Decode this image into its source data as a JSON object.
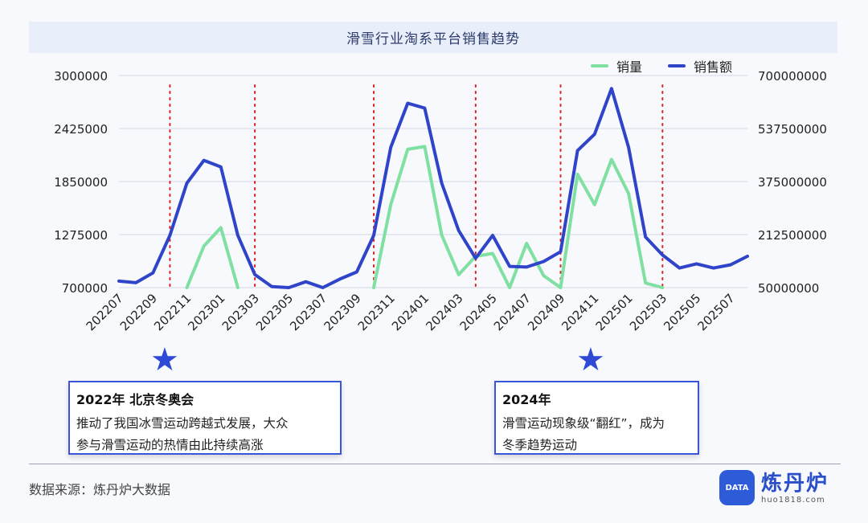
{
  "title": "滑雪行业淘系平台销售趋势",
  "legend": [
    {
      "name": "销量",
      "color": "#7fe0a2"
    },
    {
      "name": "销售额",
      "color": "#2f44c8"
    }
  ],
  "chart_data": {
    "type": "line",
    "title": "滑雪行业淘系平台销售趋势",
    "x": [
      "202207",
      "202208",
      "202209",
      "202210",
      "202211",
      "202212",
      "202301",
      "202302",
      "202303",
      "202304",
      "202305",
      "202306",
      "202307",
      "202308",
      "202309",
      "202310",
      "202311",
      "202312",
      "202401",
      "202402",
      "202403",
      "202404",
      "202405",
      "202406",
      "202407",
      "202408",
      "202409",
      "202410",
      "202411",
      "202412",
      "202501",
      "202502",
      "202503",
      "202504",
      "202505",
      "202506",
      "202507",
      "202508"
    ],
    "tick_labels": [
      "202207",
      "202209",
      "202211",
      "202301",
      "202303",
      "202305",
      "202307",
      "202309",
      "202311",
      "202401",
      "202403",
      "202405",
      "202407",
      "202409",
      "202411",
      "202501",
      "202503",
      "202505",
      "202507"
    ],
    "y_left": {
      "ticks": [
        "3000000",
        "2425000",
        "1850000",
        "1275000",
        "700000"
      ],
      "ylim": [
        700000,
        3000000
      ]
    },
    "y_right": {
      "ticks": [
        "700000000",
        "537500000",
        "375000000",
        "212500000",
        "50000000"
      ],
      "ylim": [
        50000000,
        700000000
      ]
    },
    "series": [
      {
        "name": "销量",
        "axis": "left",
        "color": "#7fe0a2",
        "values": [
          null,
          null,
          null,
          null,
          700000,
          1150000,
          1350000,
          700000,
          null,
          null,
          null,
          null,
          null,
          null,
          null,
          700000,
          1600000,
          2200000,
          2230000,
          1270000,
          840000,
          1040000,
          1070000,
          700000,
          1180000,
          830000,
          700000,
          1930000,
          1600000,
          2090000,
          1720000,
          750000,
          700000,
          null,
          null,
          null,
          null,
          null
        ]
      },
      {
        "name": "销售额",
        "axis": "right",
        "color": "#2f44c8",
        "values": [
          70000000,
          65000000,
          95000000,
          210000000,
          370000000,
          440000000,
          420000000,
          210000000,
          90000000,
          53000000,
          50000000,
          68000000,
          50000000,
          76000000,
          98000000,
          210000000,
          480000000,
          615000000,
          600000000,
          370000000,
          225000000,
          140000000,
          210000000,
          115000000,
          113000000,
          130000000,
          160000000,
          470000000,
          520000000,
          660000000,
          480000000,
          205000000,
          150000000,
          110000000,
          123000000,
          110000000,
          120000000,
          146000000
        ]
      }
    ],
    "event_lines_at": [
      "202210",
      "202303",
      "202310",
      "202404",
      "202409",
      "202503"
    ],
    "grid": true
  },
  "annotations": [
    {
      "title": "2022年 北京冬奥会",
      "lines": [
        "推动了我国冰雪运动跨越式发展，大众",
        "参与滑雪运动的热情由此持续高涨"
      ]
    },
    {
      "title": "2024年",
      "lines": [
        "滑雪运动现象级“翻红”，成为",
        "冬季趋势运动"
      ]
    }
  ],
  "star_glyph": "★",
  "source": "数据来源：炼丹炉大数据",
  "logo": {
    "name": "炼丹炉",
    "url": "huo1818.com",
    "badge": "DATA"
  }
}
